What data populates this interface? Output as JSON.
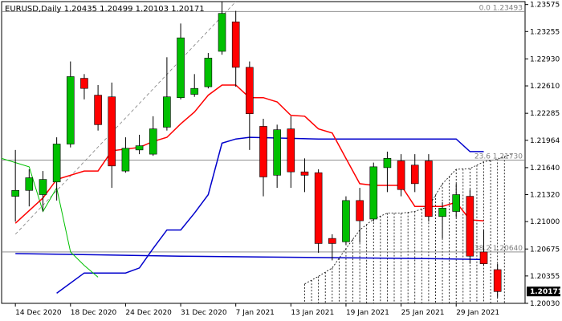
{
  "chart_data": {
    "type": "candlestick",
    "title": "EURUSD,Daily  1.20435 1.20499 1.20103 1.20171",
    "xlabel": "",
    "ylabel": "",
    "ylim": [
      1.2003,
      1.2361
    ],
    "grid": false,
    "y_ticks": [
      "1.23575",
      "1.23255",
      "1.22930",
      "1.22610",
      "1.22285",
      "1.21964",
      "1.21640",
      "1.21320",
      "1.21000",
      "1.20675",
      "1.20355",
      "1.20030"
    ],
    "x_tick_labels": [
      {
        "label": "14 Dec 2020",
        "index": 0
      },
      {
        "label": "18 Dec 2020",
        "index": 4
      },
      {
        "label": "24 Dec 2020",
        "index": 8
      },
      {
        "label": "31 Dec 2020",
        "index": 12
      },
      {
        "label": "7 Jan 2021",
        "index": 16
      },
      {
        "label": "13 Jan 2021",
        "index": 20
      },
      {
        "label": "19 Jan 2021",
        "index": 24
      },
      {
        "label": "25 Jan 2021",
        "index": 28
      },
      {
        "label": "29 Jan 2021",
        "index": 32
      }
    ],
    "last_price": "1.20171",
    "candles": [
      {
        "o": 1.213,
        "h": 1.2185,
        "l": 1.21,
        "c": 1.2137
      },
      {
        "o": 1.2137,
        "h": 1.2162,
        "l": 1.2118,
        "c": 1.2152
      },
      {
        "o": 1.2132,
        "h": 1.216,
        "l": 1.2112,
        "c": 1.215
      },
      {
        "o": 1.2147,
        "h": 1.22,
        "l": 1.2125,
        "c": 1.2192
      },
      {
        "o": 1.2192,
        "h": 1.229,
        "l": 1.2188,
        "c": 1.2272
      },
      {
        "o": 1.227,
        "h": 1.2275,
        "l": 1.2245,
        "c": 1.2258
      },
      {
        "o": 1.225,
        "h": 1.2262,
        "l": 1.2208,
        "c": 1.2215
      },
      {
        "o": 1.2248,
        "h": 1.2265,
        "l": 1.214,
        "c": 1.2166
      },
      {
        "o": 1.216,
        "h": 1.22,
        "l": 1.2158,
        "c": 1.2187
      },
      {
        "o": 1.2185,
        "h": 1.2203,
        "l": 1.218,
        "c": 1.219
      },
      {
        "o": 1.218,
        "h": 1.2225,
        "l": 1.2178,
        "c": 1.221
      },
      {
        "o": 1.2212,
        "h": 1.2295,
        "l": 1.2208,
        "c": 1.2248
      },
      {
        "o": 1.2247,
        "h": 1.2335,
        "l": 1.2245,
        "c": 1.2318
      },
      {
        "o": 1.2251,
        "h": 1.2275,
        "l": 1.2248,
        "c": 1.2258
      },
      {
        "o": 1.226,
        "h": 1.23,
        "l": 1.2258,
        "c": 1.2294
      },
      {
        "o": 1.2302,
        "h": 1.2361,
        "l": 1.2298,
        "c": 1.2347
      },
      {
        "o": 1.2337,
        "h": 1.235,
        "l": 1.226,
        "c": 1.2283
      },
      {
        "o": 1.2283,
        "h": 1.229,
        "l": 1.2185,
        "c": 1.2228
      },
      {
        "o": 1.2213,
        "h": 1.2222,
        "l": 1.213,
        "c": 1.2153
      },
      {
        "o": 1.2155,
        "h": 1.2215,
        "l": 1.214,
        "c": 1.2209
      },
      {
        "o": 1.221,
        "h": 1.2225,
        "l": 1.214,
        "c": 1.2159
      },
      {
        "o": 1.2159,
        "h": 1.2175,
        "l": 1.2135,
        "c": 1.2155
      },
      {
        "o": 1.2158,
        "h": 1.2162,
        "l": 1.2063,
        "c": 1.2074
      },
      {
        "o": 1.208,
        "h": 1.2085,
        "l": 1.2054,
        "c": 1.2074
      },
      {
        "o": 1.2076,
        "h": 1.213,
        "l": 1.2072,
        "c": 1.2125
      },
      {
        "o": 1.2125,
        "h": 1.214,
        "l": 1.2075,
        "c": 1.2101
      },
      {
        "o": 1.2103,
        "h": 1.217,
        "l": 1.21,
        "c": 1.2165
      },
      {
        "o": 1.2164,
        "h": 1.2183,
        "l": 1.2135,
        "c": 1.2175
      },
      {
        "o": 1.2172,
        "h": 1.218,
        "l": 1.213,
        "c": 1.2138
      },
      {
        "o": 1.2167,
        "h": 1.218,
        "l": 1.2135,
        "c": 1.2145
      },
      {
        "o": 1.2172,
        "h": 1.218,
        "l": 1.21,
        "c": 1.2106
      },
      {
        "o": 1.2106,
        "h": 1.2123,
        "l": 1.208,
        "c": 1.2116
      },
      {
        "o": 1.2112,
        "h": 1.2145,
        "l": 1.2105,
        "c": 1.2132
      },
      {
        "o": 1.213,
        "h": 1.2138,
        "l": 1.205,
        "c": 1.2059
      },
      {
        "o": 1.2064,
        "h": 1.209,
        "l": 1.2048,
        "c": 1.205
      },
      {
        "o": 1.2043,
        "h": 1.205,
        "l": 1.201,
        "c": 1.2017
      }
    ],
    "colors": {
      "bull": "#00c000",
      "bear": "#ff0000",
      "red_line": "#ff0000",
      "blue_line": "#0000cc",
      "green_line": "#00c000",
      "fib_line": "#808080"
    },
    "red_line": [
      [
        0,
        1.2098
      ],
      [
        2,
        1.2128
      ],
      [
        3,
        1.215
      ],
      [
        5,
        1.216
      ],
      [
        6,
        1.216
      ],
      [
        7,
        1.2184
      ],
      [
        8,
        1.2186
      ],
      [
        9,
        1.2188
      ],
      [
        10,
        1.2195
      ],
      [
        11,
        1.22
      ],
      [
        12,
        1.2216
      ],
      [
        13,
        1.223
      ],
      [
        14,
        1.225
      ],
      [
        15,
        1.2262
      ],
      [
        16,
        1.2262
      ],
      [
        17,
        1.2247
      ],
      [
        18,
        1.2247
      ],
      [
        19,
        1.2242
      ],
      [
        20,
        1.2226
      ],
      [
        21,
        1.2225
      ],
      [
        22,
        1.221
      ],
      [
        23,
        1.2205
      ],
      [
        24,
        1.2175
      ],
      [
        25,
        1.2145
      ],
      [
        26,
        1.2143
      ],
      [
        27,
        1.2143
      ],
      [
        28,
        1.2143
      ],
      [
        29,
        1.2118
      ],
      [
        30,
        1.2118
      ],
      [
        31,
        1.2118
      ],
      [
        32,
        1.2123
      ],
      [
        33,
        1.2102
      ],
      [
        34,
        1.2101
      ]
    ],
    "blue_ref_line": [
      [
        0,
        1.2062
      ],
      [
        8,
        1.206
      ],
      [
        12,
        1.2059
      ],
      [
        18,
        1.2058
      ],
      [
        24,
        1.2057
      ],
      [
        30,
        1.2056
      ],
      [
        34,
        1.2055
      ]
    ],
    "blue_trend_line": [
      [
        3,
        1.2015
      ],
      [
        5,
        1.2039
      ],
      [
        8,
        1.2039
      ],
      [
        9,
        1.2045
      ],
      [
        10,
        1.2068
      ],
      [
        11,
        1.209
      ],
      [
        12,
        1.209
      ],
      [
        13,
        1.211
      ],
      [
        14,
        1.2132
      ],
      [
        15,
        1.2193
      ],
      [
        16,
        1.2198
      ],
      [
        17,
        1.22
      ],
      [
        22,
        1.2198
      ],
      [
        25,
        1.2198
      ],
      [
        26,
        1.2198
      ],
      [
        30,
        1.2198
      ],
      [
        31,
        1.2198
      ],
      [
        32,
        1.2198
      ],
      [
        33,
        1.2183
      ],
      [
        34,
        1.2183
      ]
    ],
    "green_line": [
      [
        -1,
        1.2175
      ],
      [
        0,
        1.217
      ],
      [
        1,
        1.2165
      ],
      [
        2,
        1.2112
      ],
      [
        3,
        1.214
      ],
      [
        4,
        1.2064
      ],
      [
        5,
        1.2048
      ],
      [
        6,
        1.2034
      ]
    ],
    "cloud_upper": [
      [
        21,
        1.2026
      ],
      [
        22,
        1.2035
      ],
      [
        23,
        1.2045
      ],
      [
        24,
        1.2068
      ],
      [
        25,
        1.209
      ],
      [
        26,
        1.2103
      ],
      [
        27,
        1.211
      ],
      [
        28,
        1.211
      ],
      [
        29,
        1.2112
      ],
      [
        30,
        1.2118
      ],
      [
        31,
        1.2145
      ],
      [
        32,
        1.2162
      ],
      [
        33,
        1.2163
      ],
      [
        34,
        1.2171
      ],
      [
        35,
        1.2174
      ],
      [
        36,
        1.218
      ]
    ],
    "cloud_lower": 1.2003,
    "fib_levels": [
      {
        "label": "0.0 1.23493",
        "value": 1.23493
      },
      {
        "label": "23.6 1.21730",
        "value": 1.2173
      },
      {
        "label": "38.2 1.20640",
        "value": 1.2064
      }
    ],
    "diagonal_line": [
      [
        0,
        1.2085
      ],
      [
        16,
        1.2361
      ]
    ],
    "x_index_range": [
      -1,
      37
    ]
  }
}
